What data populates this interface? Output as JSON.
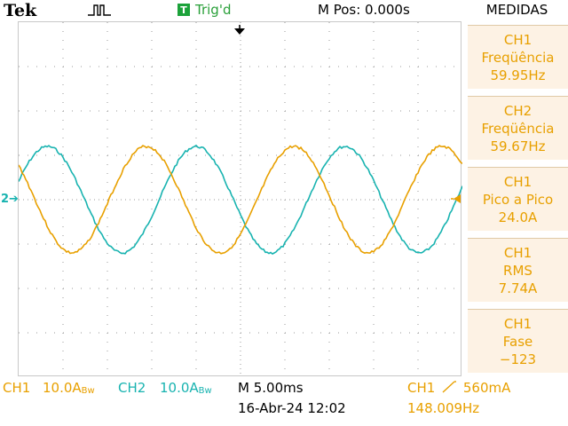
{
  "header": {
    "brand": "Tek",
    "trigger_box": "T",
    "trigger_state": "Trig'd",
    "m_pos": "M Pos: 0.000s",
    "menu_title": "MEDIDAS"
  },
  "markers": {
    "ch2_ground": "2"
  },
  "measurements": [
    {
      "channel": "CH1",
      "name": "Freqüência",
      "value": "59.95Hz"
    },
    {
      "channel": "CH2",
      "name": "Freqüência",
      "value": "59.67Hz"
    },
    {
      "channel": "CH1",
      "name": "Pico a Pico",
      "value": "24.0A"
    },
    {
      "channel": "CH1",
      "name": "RMS",
      "value": "7.74A"
    },
    {
      "channel": "CH1",
      "name": "Fase",
      "value": "−123"
    }
  ],
  "status": {
    "ch1_label": "CH1",
    "ch1_scale": "10.0A",
    "ch1_bw": "Bw",
    "ch2_label": "CH2",
    "ch2_scale": "10.0A",
    "ch2_bw": "Bw",
    "timebase": "M 5.00ms",
    "datetime": "16-Abr-24 12:02",
    "trigger_source": "CH1",
    "trigger_slope": "rising-edge-icon",
    "trigger_level": "560mA",
    "trigger_freq": "148.009Hz"
  },
  "colors": {
    "ch1": "#e8a000",
    "ch2": "#18b3b0",
    "grid": "#9a9a9a"
  },
  "waveforms": {
    "ch1_frequency_hz": 59.95,
    "ch2_frequency_hz": 59.67,
    "ch1_peak_to_peak_a": 24.0,
    "volts_per_div_a": 10.0,
    "time_per_div_ms": 5.0
  }
}
